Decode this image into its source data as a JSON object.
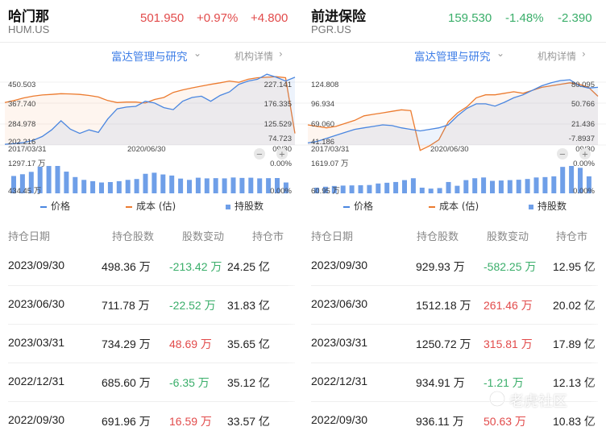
{
  "left": {
    "header": {
      "name": "哈门那",
      "symbol": "HUM.US",
      "price": "501.950",
      "change_pct": "+0.97%",
      "change": "+4.800",
      "direction": "up"
    },
    "institution": {
      "link": "富达管理与研究",
      "detail": "机构详情"
    },
    "chart": {
      "y_left": [
        "450.503",
        "367.740",
        "284.978",
        "202.216"
      ],
      "y_right": [
        "227.141",
        "176.335",
        "125.529",
        "74.723"
      ],
      "x_start": "2017/03/31",
      "x_mid": "2020/06/30",
      "x_end": "09/30",
      "vol_top": "1297.17 万",
      "vol_bottom": "434.45 万",
      "pct_top": "0.00%",
      "pct_bottom": "0.00%"
    },
    "legend": {
      "price": "价格",
      "cost": "成本 (估)",
      "holding": "持股数"
    },
    "columns": {
      "date": "持仓日期",
      "shares": "持仓股数",
      "change": "股数变动",
      "value": "持仓市"
    },
    "rows": [
      {
        "date": "2023/09/30",
        "shares": "498.36 万",
        "change": "-213.42 万",
        "dir": "down",
        "value": "24.25 亿"
      },
      {
        "date": "2023/06/30",
        "shares": "711.78 万",
        "change": "-22.52 万",
        "dir": "down",
        "value": "31.83 亿"
      },
      {
        "date": "2023/03/31",
        "shares": "734.29 万",
        "change": "48.69 万",
        "dir": "up",
        "value": "35.65 亿"
      },
      {
        "date": "2022/12/31",
        "shares": "685.60 万",
        "change": "-6.35 万",
        "dir": "down",
        "value": "35.12 亿"
      },
      {
        "date": "2022/09/30",
        "shares": "691.96 万",
        "change": "16.59 万",
        "dir": "up",
        "value": "33.57 亿"
      }
    ]
  },
  "right": {
    "header": {
      "name": "前进保险",
      "symbol": "PGR.US",
      "price": "159.530",
      "change_pct": "-1.48%",
      "change": "-2.390",
      "direction": "down"
    },
    "institution": {
      "link": "富达管理与研究",
      "detail": "机构详情"
    },
    "chart": {
      "y_left": [
        "124.808",
        "96.934",
        "69.060",
        "41.186"
      ],
      "y_right": [
        "80.095",
        "50.766",
        "21.436",
        "-7.8937"
      ],
      "x_start": "2017/03/31",
      "x_mid": "2020/06/30",
      "x_end": "09/30",
      "vol_top": "1619.07 万",
      "vol_bottom": "60.95 万",
      "pct_top": "0.00%",
      "pct_bottom": "0.00%"
    },
    "legend": {
      "price": "价格",
      "cost": "成本 (估)",
      "holding": "持股数"
    },
    "columns": {
      "date": "持仓日期",
      "shares": "持仓股数",
      "change": "股数变动",
      "value": "持仓市"
    },
    "rows": [
      {
        "date": "2023/09/30",
        "shares": "929.93 万",
        "change": "-582.25 万",
        "dir": "down",
        "value": "12.95 亿"
      },
      {
        "date": "2023/06/30",
        "shares": "1512.18 万",
        "change": "261.46 万",
        "dir": "up",
        "value": "20.02 亿"
      },
      {
        "date": "2023/03/31",
        "shares": "1250.72 万",
        "change": "315.81 万",
        "dir": "up",
        "value": "17.89 亿"
      },
      {
        "date": "2022/12/31",
        "shares": "934.91 万",
        "change": "-1.21 万",
        "dir": "down",
        "value": "12.13 亿"
      },
      {
        "date": "2022/09/30",
        "shares": "936.11 万",
        "change": "50.63 万",
        "dir": "up",
        "value": "10.83 亿"
      }
    ]
  },
  "watermark": "老虎社区",
  "colors": {
    "up": "#e24b4b",
    "down": "#3aae6a",
    "price_line": "#4a86e0",
    "cost_line": "#ec7b2f",
    "holding_bar": "#6f9fe8",
    "link": "#3e7ee7"
  },
  "chart_data": [
    {
      "type": "line",
      "title": "哈门那 HUM.US",
      "x_range": [
        "2017/03/31",
        "2023/09/30"
      ],
      "series": [
        {
          "name": "价格",
          "values": [
            205,
            208,
            212,
            220,
            236,
            262,
            298,
            265,
            248,
            262,
            252,
            305,
            345,
            352,
            355,
            375,
            368,
            350,
            342,
            375,
            390,
            395,
            375,
            398,
            412,
            442,
            455,
            462,
            482,
            470,
            455,
            470
          ]
        },
        {
          "name": "成本 (估)",
          "values": [
            370,
            378,
            388,
            395,
            400,
            402,
            405,
            404,
            402,
            398,
            392,
            378,
            370,
            372,
            372,
            368,
            382,
            390,
            410,
            420,
            428,
            435,
            442,
            448,
            455,
            450,
            462,
            468,
            470,
            472,
            468,
            248
          ]
        },
        {
          "name": "持股数",
          "values": [
            800,
            880,
            990,
            1230,
            1260,
            1262,
            1000,
            750,
            620,
            560,
            500,
            520,
            560,
            620,
            660,
            900,
            950,
            870,
            820,
            680,
            620,
            720,
            690,
            700,
            690,
            730,
            710,
            720,
            690,
            700,
            705,
            500
          ]
        }
      ]
    },
    {
      "type": "line",
      "title": "前进保险 PGR.US",
      "x_range": [
        "2017/03/31",
        "2023/09/30"
      ],
      "series": [
        {
          "name": "价格",
          "values": [
            44,
            46,
            50,
            54,
            58,
            62,
            64,
            66,
            68,
            67,
            64,
            62,
            60,
            62,
            64,
            68,
            80,
            90,
            96,
            96,
            93,
            98,
            104,
            108,
            114,
            120,
            124,
            127,
            128,
            120,
            117,
            118
          ]
        },
        {
          "name": "成本 (估)",
          "values": [
            68,
            66,
            64,
            66,
            70,
            74,
            80,
            82,
            84,
            86,
            88,
            87,
            34,
            40,
            48,
            72,
            84,
            92,
            104,
            108,
            108,
            110,
            112,
            110,
            114,
            118,
            120,
            122,
            124,
            122,
            118,
            106
          ]
        },
        {
          "name": "持股数",
          "values": [
            300,
            350,
            390,
            410,
            420,
            430,
            440,
            520,
            560,
            600,
            700,
            800,
            300,
            250,
            280,
            600,
            400,
            700,
            800,
            840,
            660,
            680,
            700,
            720,
            760,
            840,
            860,
            900,
            1400,
            1450,
            1350,
            900
          ]
        }
      ]
    }
  ]
}
